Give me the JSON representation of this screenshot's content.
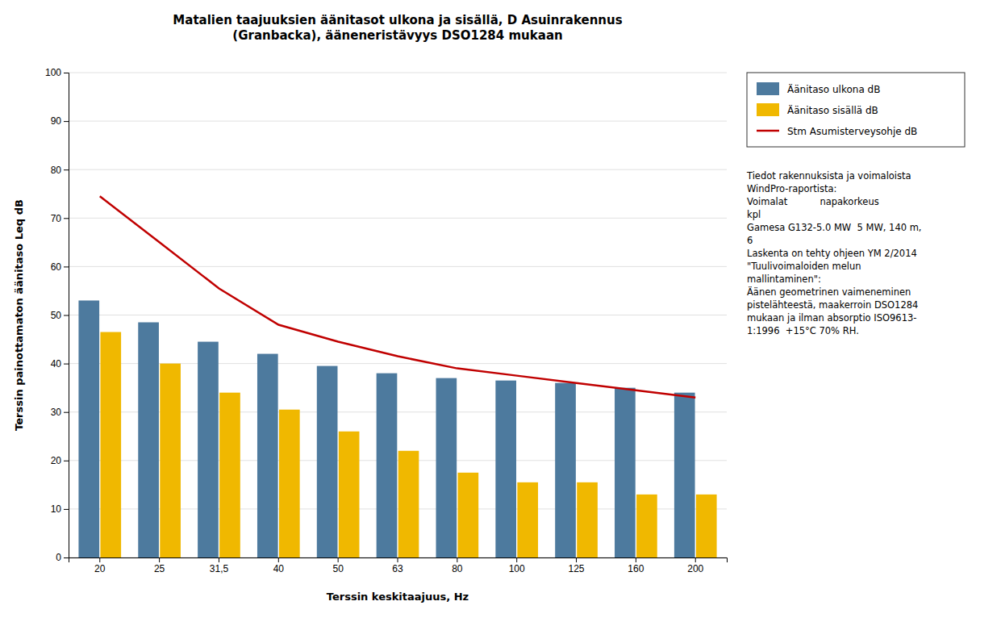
{
  "chart_data": {
    "type": "bar",
    "title": "Matalien taajuuksien äänitasot ulkona ja sisällä, D Asuinrakennus\n(Granbacka), ääneneristävyys DSO1284 mukaan",
    "x_label": "Terssin keskitaajuus, Hz",
    "y_label": "Terssin painottamaton äänitaso Leq dB",
    "categories": [
      "20",
      "25",
      "31,5",
      "40",
      "50",
      "63",
      "80",
      "100",
      "125",
      "160",
      "200"
    ],
    "series": [
      {
        "name": "Äänitaso ulkona dB",
        "type": "bar",
        "color": "#4d7a9e",
        "values": [
          53,
          48.5,
          44.5,
          42,
          39.5,
          38,
          37,
          36.5,
          36,
          35,
          34
        ]
      },
      {
        "name": "Äänitaso sisällä dB",
        "type": "bar",
        "color": "#f0b800",
        "values": [
          46.5,
          40,
          34,
          30.5,
          26,
          22,
          17.5,
          15.5,
          15.5,
          13,
          13
        ]
      },
      {
        "name": "Stm Asumisterveysohje dB",
        "type": "line",
        "color": "#c00000",
        "values": [
          74.5,
          65,
          55.5,
          48,
          44.5,
          41.5,
          39,
          37.5,
          36,
          34.5,
          33
        ]
      }
    ],
    "ylim": [
      0,
      100
    ],
    "yticks": [
      0,
      10,
      20,
      30,
      40,
      50,
      60,
      70,
      80,
      90,
      100
    ],
    "grid": true,
    "legend": "right",
    "annotation": "Tiedot rakennuksista ja voimaloista\nWindPro-raportista:\nVoimalat           napakorkeus\nkpl\nGamesa G132-5.0 MW  5 MW, 140 m,\n6\nLaskenta on tehty ohjeen YM 2/2014\n\"Tuulivoimaloiden melun\nmallintaminen\":\nÄänen geometrinen vaimeneminen\npistelähteestä, maakerroin DSO1284\nmukaan ja ilman absorptio ISO9613-\n1:1996  +15°C 70% RH."
  }
}
